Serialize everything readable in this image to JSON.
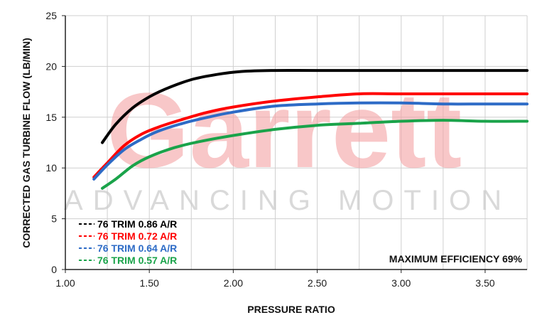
{
  "watermark": {
    "brand": "Garrett",
    "tagline": "ADVANCING MOTION"
  },
  "chart_data": {
    "type": "line",
    "xlabel": "PRESSURE RATIO",
    "ylabel": "CORRECTED GAS TURBINE FLOW (LB/MIN)",
    "xlim": [
      1.0,
      3.75
    ],
    "ylim": [
      0,
      25
    ],
    "x_ticks": [
      "1.00",
      "1.50",
      "2.00",
      "2.50",
      "3.00",
      "3.50"
    ],
    "y_ticks": [
      "0",
      "5",
      "10",
      "15",
      "20",
      "25"
    ],
    "grid": true,
    "legend_position": "bottom-left",
    "annotation": "MAXIMUM EFFICIENCY 69%",
    "series": [
      {
        "name": "76 TRIM 0.86 A/R",
        "color": "#000000",
        "points": [
          [
            1.22,
            12.5
          ],
          [
            1.3,
            14.3
          ],
          [
            1.4,
            15.9
          ],
          [
            1.5,
            17.0
          ],
          [
            1.6,
            17.8
          ],
          [
            1.75,
            18.7
          ],
          [
            1.9,
            19.2
          ],
          [
            2.05,
            19.5
          ],
          [
            2.25,
            19.6
          ],
          [
            2.5,
            19.6
          ],
          [
            3.0,
            19.6
          ],
          [
            3.5,
            19.6
          ],
          [
            3.75,
            19.6
          ]
        ]
      },
      {
        "name": "76 TRIM 0.72 A/R",
        "color": "#ff0000",
        "points": [
          [
            1.17,
            9.1
          ],
          [
            1.25,
            10.5
          ],
          [
            1.35,
            12.2
          ],
          [
            1.45,
            13.3
          ],
          [
            1.55,
            14.0
          ],
          [
            1.7,
            14.8
          ],
          [
            1.85,
            15.5
          ],
          [
            2.0,
            16.0
          ],
          [
            2.25,
            16.6
          ],
          [
            2.5,
            17.0
          ],
          [
            2.75,
            17.3
          ],
          [
            3.0,
            17.3
          ],
          [
            3.5,
            17.3
          ],
          [
            3.75,
            17.3
          ]
        ]
      },
      {
        "name": "76 TRIM 0.64 A/R",
        "color": "#2d6bc6",
        "points": [
          [
            1.17,
            8.9
          ],
          [
            1.25,
            10.3
          ],
          [
            1.35,
            11.8
          ],
          [
            1.45,
            12.8
          ],
          [
            1.55,
            13.6
          ],
          [
            1.7,
            14.4
          ],
          [
            1.85,
            15.0
          ],
          [
            2.0,
            15.5
          ],
          [
            2.25,
            16.1
          ],
          [
            2.5,
            16.3
          ],
          [
            2.75,
            16.4
          ],
          [
            3.0,
            16.4
          ],
          [
            3.25,
            16.3
          ],
          [
            3.5,
            16.3
          ],
          [
            3.75,
            16.3
          ]
        ]
      },
      {
        "name": "76 TRIM 0.57 A/R",
        "color": "#1aa34a",
        "points": [
          [
            1.22,
            8.0
          ],
          [
            1.3,
            8.9
          ],
          [
            1.4,
            10.2
          ],
          [
            1.5,
            11.1
          ],
          [
            1.65,
            12.0
          ],
          [
            1.8,
            12.6
          ],
          [
            2.0,
            13.2
          ],
          [
            2.25,
            13.8
          ],
          [
            2.5,
            14.2
          ],
          [
            2.75,
            14.4
          ],
          [
            3.0,
            14.6
          ],
          [
            3.25,
            14.7
          ],
          [
            3.5,
            14.6
          ],
          [
            3.75,
            14.6
          ]
        ]
      }
    ]
  }
}
